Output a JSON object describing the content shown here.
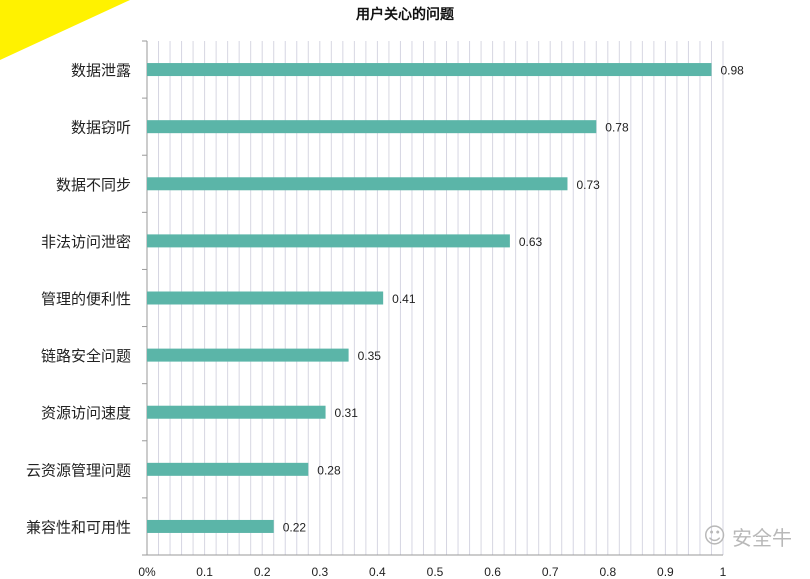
{
  "chart_data": {
    "type": "bar",
    "orientation": "horizontal",
    "title": "用户关心的问题",
    "categories": [
      "数据泄露",
      "数据窃听",
      "数据不同步",
      "非法访问泄密",
      "管理的便利性",
      "链路安全问题",
      "资源访问速度",
      "云资源管理问题",
      "兼容性和可用性"
    ],
    "values": [
      0.98,
      0.78,
      0.73,
      0.63,
      0.41,
      0.35,
      0.31,
      0.28,
      0.22
    ],
    "value_labels": [
      "0.98",
      "0.78",
      "0.73",
      "0.63",
      "0.41",
      "0.35",
      "0.31",
      "0.28",
      "0.22"
    ],
    "xlim": [
      0,
      1
    ],
    "xticks": [
      0,
      0.1,
      0.2,
      0.3,
      0.4,
      0.5,
      0.6,
      0.7,
      0.8,
      0.9,
      1
    ],
    "xtick_labels": [
      "0%",
      "0.1",
      "0.2",
      "0.3",
      "0.4",
      "0.5",
      "0.6",
      "0.7",
      "0.8",
      "0.9",
      "1"
    ],
    "grid": true,
    "bar_color": "#5bb5a8",
    "grid_color": "#d6d6e2"
  },
  "decor": {
    "corner_color": "#fff200",
    "watermark_icon": "wechat-icon",
    "watermark_text": "安全牛"
  }
}
